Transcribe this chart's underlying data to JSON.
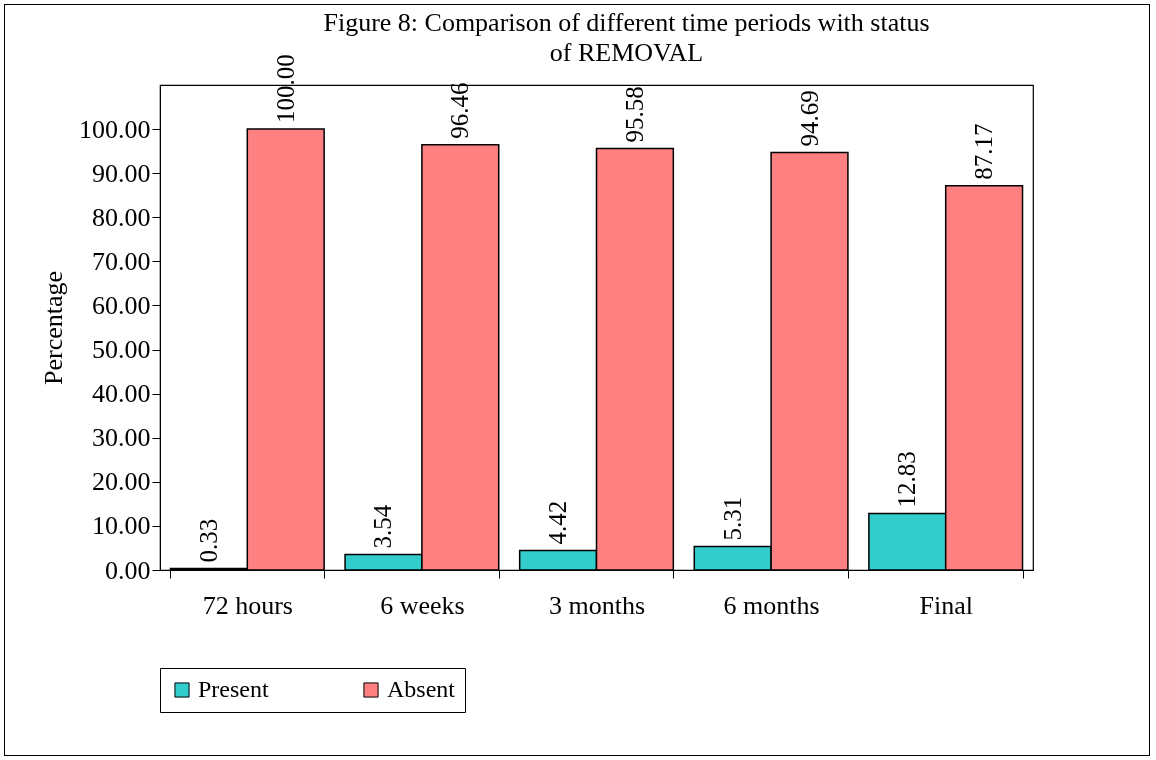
{
  "chart_data": {
    "type": "bar",
    "title": "Figure 8: Comparison of different time periods with status of REMOVAL",
    "ylabel": "Percentage",
    "categories": [
      "72 hours",
      "6 weeks",
      "3 months",
      "6 months",
      "Final"
    ],
    "series": [
      {
        "name": "Present",
        "color": "#33cccc",
        "values": [
          0.33,
          3.54,
          4.42,
          5.31,
          12.83
        ],
        "value_labels": [
          "0.33",
          "3.54",
          "4.42",
          "5.31",
          "12.83"
        ]
      },
      {
        "name": "Absent",
        "color": "#ff8080",
        "values": [
          100,
          96.46,
          95.58,
          94.69,
          87.17
        ],
        "value_labels": [
          "100.00",
          "96.46",
          "95.58",
          "94.69",
          "87.17"
        ]
      }
    ],
    "ylim": [
      0,
      110
    ],
    "yticks": [
      {
        "value": 0,
        "label": "0.00"
      },
      {
        "value": 10,
        "label": "10.00"
      },
      {
        "value": 20,
        "label": "20.00"
      },
      {
        "value": 30,
        "label": "30.00"
      },
      {
        "value": 40,
        "label": "40.00"
      },
      {
        "value": 50,
        "label": "50.00"
      },
      {
        "value": 60,
        "label": "60.00"
      },
      {
        "value": 70,
        "label": "70.00"
      },
      {
        "value": 80,
        "label": "80.00"
      },
      {
        "value": 90,
        "label": "90.00"
      },
      {
        "value": 100,
        "label": "100.00"
      }
    ],
    "grid": false,
    "legend": "bottom"
  }
}
